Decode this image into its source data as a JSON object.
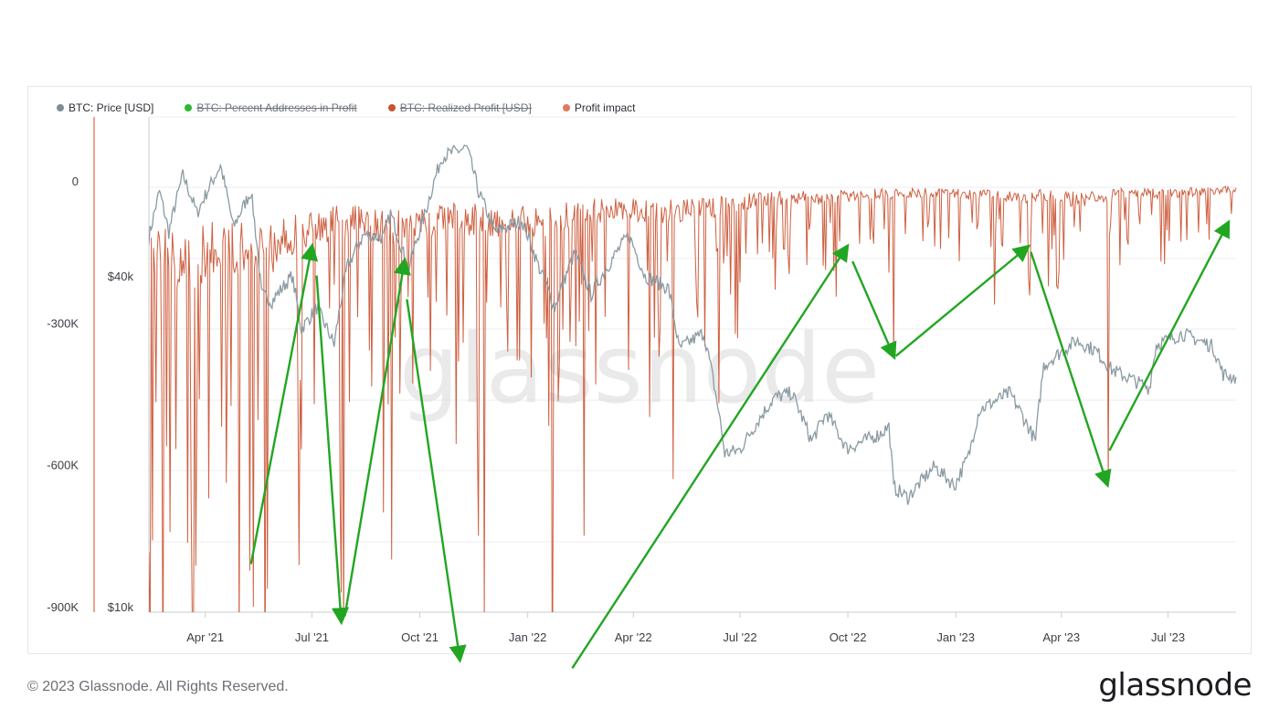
{
  "chart_data": {
    "type": "line",
    "title": "",
    "legend": [
      {
        "name": "BTC: Price [USD]",
        "color": "#7c8d96",
        "enabled": true
      },
      {
        "name": "BTC: Percent Addresses in Profit",
        "color": "#2db82d",
        "enabled": false
      },
      {
        "name": "BTC: Realized Profit [USD]",
        "color": "#c8552f",
        "enabled": false
      },
      {
        "name": "Profit impact",
        "color": "#e07a5f",
        "enabled": true
      }
    ],
    "legend_placement": "top-left",
    "x_ticks": [
      "Apr '21",
      "Jul '21",
      "Oct '21",
      "Jan '22",
      "Apr '22",
      "Jul '22",
      "Oct '22",
      "Jan '23",
      "Apr '23",
      "Jul '23"
    ],
    "x_range": [
      "2021-02-12",
      "2023-08-28"
    ],
    "left_axis_ticks": [
      "0",
      "-300K",
      "-600K",
      "-900K"
    ],
    "left_axis_range": [
      -900000,
      0
    ],
    "right_price_axis_ticks": [
      "$40k",
      "$10k"
    ],
    "price_axis_scale": "log",
    "grid": true,
    "watermark": "glassnode",
    "series": [
      {
        "name": "BTC: Price [USD]",
        "color": "#8b9aa2",
        "points": [
          [
            "2021-02-12",
            47000
          ],
          [
            "2021-02-21",
            57000
          ],
          [
            "2021-03-01",
            48000
          ],
          [
            "2021-03-13",
            61000
          ],
          [
            "2021-03-25",
            52000
          ],
          [
            "2021-04-14",
            63500
          ],
          [
            "2021-04-25",
            49000
          ],
          [
            "2021-05-10",
            57000
          ],
          [
            "2021-05-19",
            37000
          ],
          [
            "2021-05-28",
            36000
          ],
          [
            "2021-06-14",
            40000
          ],
          [
            "2021-06-22",
            32000
          ],
          [
            "2021-07-05",
            35000
          ],
          [
            "2021-07-20",
            30000
          ],
          [
            "2021-07-31",
            41500
          ],
          [
            "2021-08-14",
            47500
          ],
          [
            "2021-08-31",
            47000
          ],
          [
            "2021-09-06",
            52000
          ],
          [
            "2021-09-21",
            41000
          ],
          [
            "2021-10-05",
            51500
          ],
          [
            "2021-10-20",
            66000
          ],
          [
            "2021-11-10",
            68500
          ],
          [
            "2021-11-20",
            57000
          ],
          [
            "2021-12-04",
            48000
          ],
          [
            "2021-12-27",
            50500
          ],
          [
            "2022-01-10",
            41800
          ],
          [
            "2022-01-24",
            35000
          ],
          [
            "2022-02-10",
            44000
          ],
          [
            "2022-02-24",
            37000
          ],
          [
            "2022-03-28",
            47500
          ],
          [
            "2022-04-11",
            40000
          ],
          [
            "2022-05-01",
            38000
          ],
          [
            "2022-05-10",
            29500
          ],
          [
            "2022-05-31",
            31500
          ],
          [
            "2022-06-13",
            22500
          ],
          [
            "2022-06-18",
            19000
          ],
          [
            "2022-07-01",
            19300
          ],
          [
            "2022-07-30",
            24000
          ],
          [
            "2022-08-14",
            24500
          ],
          [
            "2022-08-31",
            20000
          ],
          [
            "2022-09-13",
            22500
          ],
          [
            "2022-09-30",
            19400
          ],
          [
            "2022-10-28",
            20600
          ],
          [
            "2022-11-05",
            21300
          ],
          [
            "2022-11-09",
            16500
          ],
          [
            "2022-11-21",
            15800
          ],
          [
            "2022-12-14",
            18000
          ],
          [
            "2022-12-31",
            16600
          ],
          [
            "2023-01-12",
            18800
          ],
          [
            "2023-01-21",
            22800
          ],
          [
            "2023-02-16",
            24500
          ],
          [
            "2023-03-10",
            20000
          ],
          [
            "2023-03-17",
            27500
          ],
          [
            "2023-04-14",
            30500
          ],
          [
            "2023-04-30",
            29300
          ],
          [
            "2023-05-14",
            27000
          ],
          [
            "2023-06-15",
            25000
          ],
          [
            "2023-06-21",
            30000
          ],
          [
            "2023-07-13",
            31400
          ],
          [
            "2023-08-08",
            29800
          ],
          [
            "2023-08-17",
            26500
          ],
          [
            "2023-08-28",
            26100
          ]
        ]
      },
      {
        "name": "Profit impact",
        "color": "#c94f2c",
        "baseline_points": [
          [
            "2021-02-12",
            -250000
          ],
          [
            "2021-03-15",
            -280000
          ],
          [
            "2021-04-15",
            -230000
          ],
          [
            "2021-05-20",
            -250000
          ],
          [
            "2021-06-20",
            -180000
          ],
          [
            "2021-07-20",
            -150000
          ],
          [
            "2021-08-20",
            -150000
          ],
          [
            "2021-09-20",
            -170000
          ],
          [
            "2021-10-20",
            -130000
          ],
          [
            "2021-11-20",
            -140000
          ],
          [
            "2021-12-20",
            -140000
          ],
          [
            "2022-01-20",
            -140000
          ],
          [
            "2022-02-20",
            -110000
          ],
          [
            "2022-03-20",
            -100000
          ],
          [
            "2022-04-20",
            -110000
          ],
          [
            "2022-05-20",
            -100000
          ],
          [
            "2022-06-20",
            -90000
          ],
          [
            "2022-07-20",
            -60000
          ],
          [
            "2022-08-20",
            -60000
          ],
          [
            "2022-09-20",
            -60000
          ],
          [
            "2022-10-20",
            -45000
          ],
          [
            "2022-11-20",
            -45000
          ],
          [
            "2022-12-20",
            -40000
          ],
          [
            "2023-01-20",
            -50000
          ],
          [
            "2023-02-20",
            -60000
          ],
          [
            "2023-03-20",
            -50000
          ],
          [
            "2023-04-20",
            -70000
          ],
          [
            "2023-05-20",
            -45000
          ],
          [
            "2023-06-20",
            -45000
          ],
          [
            "2023-07-20",
            -40000
          ],
          [
            "2023-08-28",
            -30000
          ]
        ],
        "major_dips": [
          [
            "2021-02-15",
            -760000
          ],
          [
            "2021-04-30",
            -990000
          ],
          [
            "2021-05-12",
            -900000
          ],
          [
            "2021-07-26",
            -870000
          ],
          [
            "2021-07-28",
            -980000
          ],
          [
            "2021-09-07",
            -800000
          ],
          [
            "2021-11-20",
            -750000
          ],
          [
            "2021-11-25",
            -930000
          ],
          [
            "2022-01-22",
            -1150000
          ],
          [
            "2022-02-18",
            -750000
          ],
          [
            "2022-05-05",
            -630000
          ],
          [
            "2022-06-13",
            -470000
          ],
          [
            "2022-11-09",
            -370000
          ],
          [
            "2023-05-11",
            -640000
          ]
        ]
      }
    ],
    "annotation_arrows": [
      {
        "from": [
          "2021-05-10",
          -810000
        ],
        "to": [
          "2021-07-01",
          -140000
        ]
      },
      {
        "from": [
          "2021-07-05",
          -200000
        ],
        "to": [
          "2021-07-26",
          -930000
        ]
      },
      {
        "from": [
          "2021-07-29",
          -920000
        ],
        "to": [
          "2021-09-18",
          -170000
        ]
      },
      {
        "from": [
          "2021-09-20",
          -250000
        ],
        "to": [
          "2021-11-04",
          -1010000
        ]
      },
      {
        "from": [
          "2022-02-08",
          -1030000
        ],
        "to": [
          "2022-09-30",
          -140000
        ]
      },
      {
        "from": [
          "2022-10-05",
          -170000
        ],
        "to": [
          "2022-11-09",
          -370000
        ]
      },
      {
        "from": [
          "2022-11-11",
          -370000
        ],
        "to": [
          "2023-03-03",
          -140000
        ]
      },
      {
        "from": [
          "2023-03-06",
          -150000
        ],
        "to": [
          "2023-05-10",
          -640000
        ]
      },
      {
        "from": [
          "2023-05-12",
          -570000
        ],
        "to": [
          "2023-08-21",
          -90000
        ]
      }
    ]
  },
  "footer": {
    "copyright": "© 2023 Glassnode. All Rights Reserved.",
    "brand": "glassnode"
  },
  "colors": {
    "axis_line_left": "#e8846a",
    "axis_line_inner": "#c7ced3",
    "grid": "#eceef0",
    "arrow": "#22a622"
  }
}
